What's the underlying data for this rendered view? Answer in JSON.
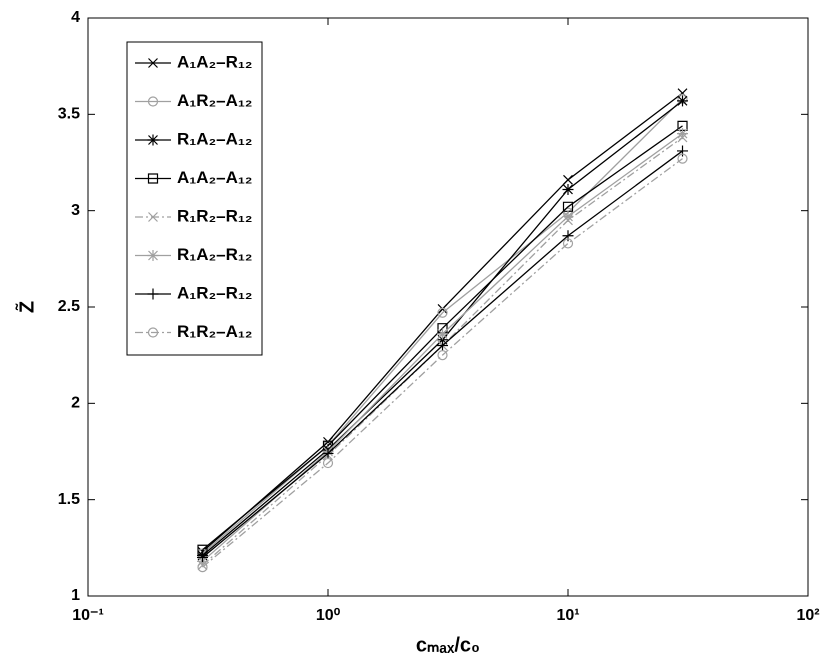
{
  "chart_data": {
    "type": "line",
    "x_label": "cₘₐₓ/c₀",
    "y_label": "Z̃",
    "x": [
      0.3,
      1,
      3,
      10,
      30
    ],
    "xscale": "log",
    "xlim": [
      0.1,
      100
    ],
    "xticks": [
      {
        "value": 0.1,
        "label": "10⁻¹"
      },
      {
        "value": 1,
        "label": "10⁰"
      },
      {
        "value": 10,
        "label": "10¹"
      },
      {
        "value": 100,
        "label": "10²"
      }
    ],
    "ylim": [
      1,
      4
    ],
    "yticks": [
      1,
      1.5,
      2,
      2.5,
      3,
      3.5,
      4
    ],
    "grid": false,
    "legend": "upper left",
    "series": [
      {
        "name": "A₁A₂–R₁₂",
        "color": "#000000",
        "marker": "x",
        "dash": "solid",
        "values": [
          1.23,
          1.8,
          2.49,
          3.16,
          3.61
        ]
      },
      {
        "name": "A₁R₂–A₁₂",
        "color": "#a0a0a0",
        "marker": "o",
        "dash": "solid",
        "values": [
          1.22,
          1.78,
          2.47,
          2.99,
          3.58
        ]
      },
      {
        "name": "R₁A₂–A₁₂",
        "color": "#000000",
        "marker": "*",
        "dash": "solid",
        "values": [
          1.21,
          1.76,
          2.33,
          3.11,
          3.57
        ]
      },
      {
        "name": "A₁A₂–A₁₂",
        "color": "#000000",
        "marker": "s",
        "dash": "solid",
        "values": [
          1.24,
          1.78,
          2.39,
          3.02,
          3.44
        ]
      },
      {
        "name": "R₁R₂–R₁₂",
        "color": "#a0a0a0",
        "marker": "x",
        "dash": "dashdot",
        "values": [
          1.16,
          1.73,
          2.3,
          2.95,
          3.38
        ]
      },
      {
        "name": "R₁A₂–R₁₂",
        "color": "#a0a0a0",
        "marker": "*",
        "dash": "solid",
        "values": [
          1.18,
          1.75,
          2.36,
          2.97,
          3.4
        ]
      },
      {
        "name": "A₁R₂–R₁₂",
        "color": "#000000",
        "marker": "+",
        "dash": "solid",
        "values": [
          1.2,
          1.74,
          2.3,
          2.87,
          3.31
        ]
      },
      {
        "name": "R₁R₂–A₁₂",
        "color": "#a0a0a0",
        "marker": "o",
        "dash": "dashdot",
        "values": [
          1.15,
          1.69,
          2.25,
          2.83,
          3.27
        ]
      }
    ]
  }
}
